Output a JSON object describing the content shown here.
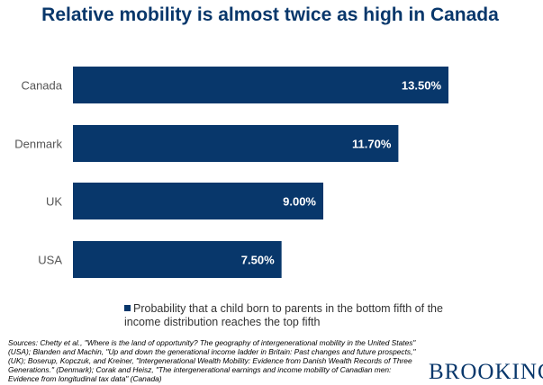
{
  "chart_data": {
    "type": "bar",
    "orientation": "horizontal",
    "title": "Relative mobility is almost twice as high in Canada",
    "categories": [
      "Canada",
      "Denmark",
      "UK",
      "USA"
    ],
    "series": [
      {
        "name": "Probability that a child born to parents in the bottom fifth of the income distribution reaches the top fifth",
        "values": [
          13.5,
          11.7,
          9.0,
          7.5
        ]
      }
    ],
    "data_labels": [
      "13.50%",
      "11.70%",
      "9.00%",
      "7.50%"
    ],
    "xlim": [
      0,
      15
    ],
    "grid": false,
    "legend_position": "bottom",
    "bar_color": "#08376b"
  },
  "sources": "Sources: Chetty et al., \"Where is the land of opportunity? The geography of intergenerational mobility in the United States\" (USA); Blanden and Machin, \"Up and down the generational income ladder in Britain: Past changes and future prospects,\" (UK); Boserup, Kopczuk, and Kreiner, \"Intergenerational Wealth Mobility: Evidence from Danish Wealth Records of Three Generations.\" (Denmark); Corak and Heisz, \"The intergenerational earnings and income mobility of Canadian men: Evidence from longitudinal tax data\" (Canada)",
  "logo": "BROOKINGS"
}
